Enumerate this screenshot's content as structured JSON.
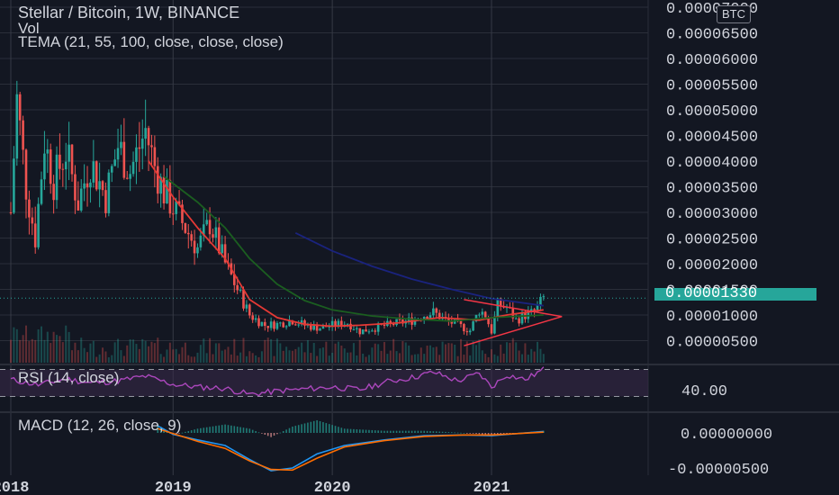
{
  "legend": {
    "title": "Stellar / Bitcoin, 1W, BINANCE",
    "vol": "Vol",
    "tema": "TEMA (21, 55, 100, close, close, close)",
    "rsi": "RSI (14, close)",
    "macd": "MACD (12, 26, close, 9)"
  },
  "currency_badge": "BTC",
  "last_price": "0.00001330",
  "chart_data": [
    {
      "type": "candlestick",
      "title": "Stellar / Bitcoin, 1W, BINANCE",
      "x_ticks": [
        "2018",
        "2019",
        "2020",
        "2021"
      ],
      "y_ticks": [
        "0.00000500",
        "0.00001000",
        "0.00001500",
        "0.00002000",
        "0.00002500",
        "0.00003000",
        "0.00003500",
        "0.00004000",
        "0.00004500",
        "0.00005000",
        "0.00005500",
        "0.00006000",
        "0.00006500",
        "0.00007000"
      ],
      "ylim": [
        2e-06,
        7.15e-05
      ],
      "last_value": 1.33e-05,
      "close_path": [
        [
          "2018-01-01",
          3e-05
        ],
        [
          "2018-01-15",
          5.2e-05
        ],
        [
          "2018-02-05",
          3.5e-05
        ],
        [
          "2018-02-26",
          2.5e-05
        ],
        [
          "2018-03-19",
          4.4e-05
        ],
        [
          "2018-04-09",
          3.6e-05
        ],
        [
          "2018-05-07",
          4.2e-05
        ],
        [
          "2018-06-04",
          3.2e-05
        ],
        [
          "2018-07-02",
          4e-05
        ],
        [
          "2018-08-06",
          3.3e-05
        ],
        [
          "2018-09-03",
          4.3e-05
        ],
        [
          "2018-10-01",
          3.8e-05
        ],
        [
          "2018-11-05",
          4.6e-05
        ],
        [
          "2018-11-26",
          3.9e-05
        ],
        [
          "2018-12-17",
          3.4e-05
        ],
        [
          "2019-01-07",
          3.1e-05
        ],
        [
          "2019-02-04",
          2.7e-05
        ],
        [
          "2019-03-04",
          2.3e-05
        ],
        [
          "2019-04-01",
          2.8e-05
        ],
        [
          "2019-05-06",
          2e-05
        ],
        [
          "2019-06-03",
          1.5e-05
        ],
        [
          "2019-07-01",
          1e-05
        ],
        [
          "2019-08-05",
          8e-06
        ],
        [
          "2019-09-02",
          8.2e-06
        ],
        [
          "2019-10-07",
          9e-06
        ],
        [
          "2019-11-04",
          8e-06
        ],
        [
          "2019-12-09",
          7.5e-06
        ],
        [
          "2020-01-06",
          8e-06
        ],
        [
          "2020-02-10",
          8.5e-06
        ],
        [
          "2020-03-09",
          6.8e-06
        ],
        [
          "2020-04-13",
          7.5e-06
        ],
        [
          "2020-05-11",
          8e-06
        ],
        [
          "2020-06-08",
          8.5e-06
        ],
        [
          "2020-07-06",
          9e-06
        ],
        [
          "2020-08-03",
          1e-05
        ],
        [
          "2020-08-24",
          1.05e-05
        ],
        [
          "2020-09-21",
          9e-06
        ],
        [
          "2020-10-19",
          8e-06
        ],
        [
          "2020-11-16",
          7e-06
        ],
        [
          "2020-12-07",
          1.1e-05
        ],
        [
          "2020-12-21",
          1e-05
        ],
        [
          "2021-01-04",
          6.8e-06
        ],
        [
          "2021-01-18",
          1.2e-05
        ],
        [
          "2021-02-08",
          1.15e-05
        ],
        [
          "2021-03-01",
          9e-06
        ],
        [
          "2021-03-22",
          1e-05
        ],
        [
          "2021-04-12",
          1.05e-05
        ],
        [
          "2021-05-03",
          1.33e-05
        ]
      ],
      "ema_red": [
        [
          "2018-11-12",
          4e-05
        ],
        [
          "2019-01-07",
          3.3e-05
        ],
        [
          "2019-03-04",
          2.7e-05
        ],
        [
          "2019-05-06",
          2.1e-05
        ],
        [
          "2019-07-01",
          1.3e-05
        ],
        [
          "2019-09-02",
          9.5e-06
        ],
        [
          "2019-11-04",
          8.2e-06
        ],
        [
          "2020-01-06",
          7.8e-06
        ],
        [
          "2020-03-09",
          8e-06
        ],
        [
          "2020-06-08",
          8.5e-06
        ],
        [
          "2020-09-07",
          9.5e-06
        ],
        [
          "2020-12-07",
          9e-06
        ],
        [
          "2021-02-08",
          1e-05
        ],
        [
          "2021-05-03",
          1.1e-05
        ]
      ],
      "ema_green": [
        [
          "2018-12-17",
          3.7e-05
        ],
        [
          "2019-03-04",
          3.2e-05
        ],
        [
          "2019-05-06",
          2.7e-05
        ],
        [
          "2019-07-01",
          2.1e-05
        ],
        [
          "2019-09-02",
          1.6e-05
        ],
        [
          "2019-11-04",
          1.28e-05
        ],
        [
          "2020-01-06",
          1.1e-05
        ],
        [
          "2020-04-06",
          9.8e-06
        ],
        [
          "2020-07-06",
          9.2e-06
        ],
        [
          "2020-10-05",
          8.8e-06
        ],
        [
          "2021-01-04",
          9.5e-06
        ],
        [
          "2021-05-03",
          1e-05
        ]
      ],
      "ema_blue": [
        [
          "2019-10-14",
          2.6e-05
        ],
        [
          "2020-01-06",
          2.25e-05
        ],
        [
          "2020-04-06",
          1.95e-05
        ],
        [
          "2020-07-06",
          1.7e-05
        ],
        [
          "2020-10-05",
          1.5e-05
        ],
        [
          "2021-01-04",
          1.32e-05
        ],
        [
          "2021-05-03",
          1.18e-05
        ]
      ],
      "trendlines": [
        {
          "from": [
            "2020-11-02",
            1.3e-05
          ],
          "to": [
            "2021-06-14",
            9.7e-06
          ]
        },
        {
          "from": [
            "2020-11-02",
            4e-06
          ],
          "to": [
            "2021-06-14",
            9.7e-06
          ]
        }
      ]
    },
    {
      "type": "line",
      "title": "RSI (14, close)",
      "y_ticks": [
        "40.00"
      ],
      "ylim": [
        20,
        80
      ],
      "bands": [
        70,
        30
      ],
      "values": [
        [
          "2018-01-01",
          55
        ],
        [
          "2018-03-05",
          47
        ],
        [
          "2018-05-07",
          56
        ],
        [
          "2018-07-02",
          50
        ],
        [
          "2018-09-03",
          53
        ],
        [
          "2018-11-05",
          60
        ],
        [
          "2019-01-07",
          48
        ],
        [
          "2019-03-04",
          44
        ],
        [
          "2019-05-06",
          42
        ],
        [
          "2019-07-01",
          33
        ],
        [
          "2019-09-02",
          38
        ],
        [
          "2019-11-04",
          41
        ],
        [
          "2020-01-06",
          44
        ],
        [
          "2020-03-09",
          40
        ],
        [
          "2020-05-11",
          52
        ],
        [
          "2020-07-06",
          58
        ],
        [
          "2020-08-24",
          66
        ],
        [
          "2020-10-19",
          53
        ],
        [
          "2020-12-07",
          64
        ],
        [
          "2021-01-04",
          44
        ],
        [
          "2021-02-08",
          62
        ],
        [
          "2021-03-22",
          55
        ],
        [
          "2021-05-03",
          70
        ]
      ]
    },
    {
      "type": "line",
      "title": "MACD (12, 26, close, 9)",
      "y_ticks": [
        "0.00000000",
        "-0.00000500"
      ],
      "ylim": [
        -6.5e-06,
        1.5e-06
      ],
      "macd": [
        [
          "2018-12-03",
          1e-06
        ],
        [
          "2019-01-07",
          -2e-07
        ],
        [
          "2019-03-04",
          -1e-06
        ],
        [
          "2019-05-06",
          -1.8e-06
        ],
        [
          "2019-07-01",
          -3.8e-06
        ],
        [
          "2019-08-19",
          -5.4e-06
        ],
        [
          "2019-10-07",
          -5e-06
        ],
        [
          "2019-12-02",
          -3e-06
        ],
        [
          "2020-02-03",
          -1.8e-06
        ],
        [
          "2020-05-04",
          -1e-06
        ],
        [
          "2020-08-03",
          -4e-07
        ],
        [
          "2020-11-02",
          -3e-07
        ],
        [
          "2021-01-04",
          -4e-07
        ],
        [
          "2021-05-03",
          2e-07
        ]
      ],
      "signal": [
        [
          "2018-12-03",
          6e-07
        ],
        [
          "2019-01-07",
          -1e-07
        ],
        [
          "2019-03-04",
          -1.2e-06
        ],
        [
          "2019-05-06",
          -2.2e-06
        ],
        [
          "2019-07-01",
          -4e-06
        ],
        [
          "2019-08-19",
          -5.2e-06
        ],
        [
          "2019-10-07",
          -5.3e-06
        ],
        [
          "2019-12-02",
          -3.6e-06
        ],
        [
          "2020-02-03",
          -2e-06
        ],
        [
          "2020-05-04",
          -1.1e-06
        ],
        [
          "2020-08-03",
          -5e-07
        ],
        [
          "2020-11-02",
          -3e-07
        ],
        [
          "2021-01-04",
          -3e-07
        ],
        [
          "2021-05-03",
          1e-07
        ]
      ]
    }
  ],
  "colors": {
    "background": "#131722",
    "grid": "#2a2e39",
    "up": "#26a69a",
    "down": "#ef5350",
    "ema_red": "#e53935",
    "ema_green": "#1b5e20",
    "ema_blue": "#1a237e",
    "rsi_line": "#ab47bc",
    "rsi_band": "#3b2a4a",
    "macd": "#2196f3",
    "signal": "#ff6d00",
    "trendline": "#f23645"
  }
}
